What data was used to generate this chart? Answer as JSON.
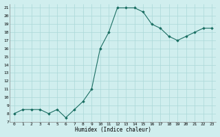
{
  "x": [
    0,
    1,
    2,
    3,
    4,
    5,
    6,
    7,
    8,
    9,
    10,
    11,
    12,
    13,
    14,
    15,
    16,
    17,
    18,
    19,
    20,
    21,
    22,
    23
  ],
  "y": [
    8,
    8.5,
    8.5,
    8.5,
    8,
    8.5,
    7.5,
    8.5,
    9.5,
    11,
    16,
    18,
    21,
    21,
    21,
    20.5,
    19,
    18.5,
    17.5,
    17,
    17.5,
    18,
    18.5,
    18.5
  ],
  "line_color": "#1a6e62",
  "marker_color": "#1a6e62",
  "bg_color": "#d0eeee",
  "grid_color": "#aad8d8",
  "xlabel": "Humidex (Indice chaleur)",
  "xlim": [
    -0.5,
    23.5
  ],
  "ylim": [
    7,
    21.5
  ],
  "yticks": [
    7,
    8,
    9,
    10,
    11,
    12,
    13,
    14,
    15,
    16,
    17,
    18,
    19,
    20,
    21
  ],
  "xticks": [
    0,
    1,
    2,
    3,
    4,
    5,
    6,
    7,
    8,
    9,
    10,
    11,
    12,
    13,
    14,
    15,
    16,
    17,
    18,
    19,
    20,
    21,
    22,
    23
  ]
}
